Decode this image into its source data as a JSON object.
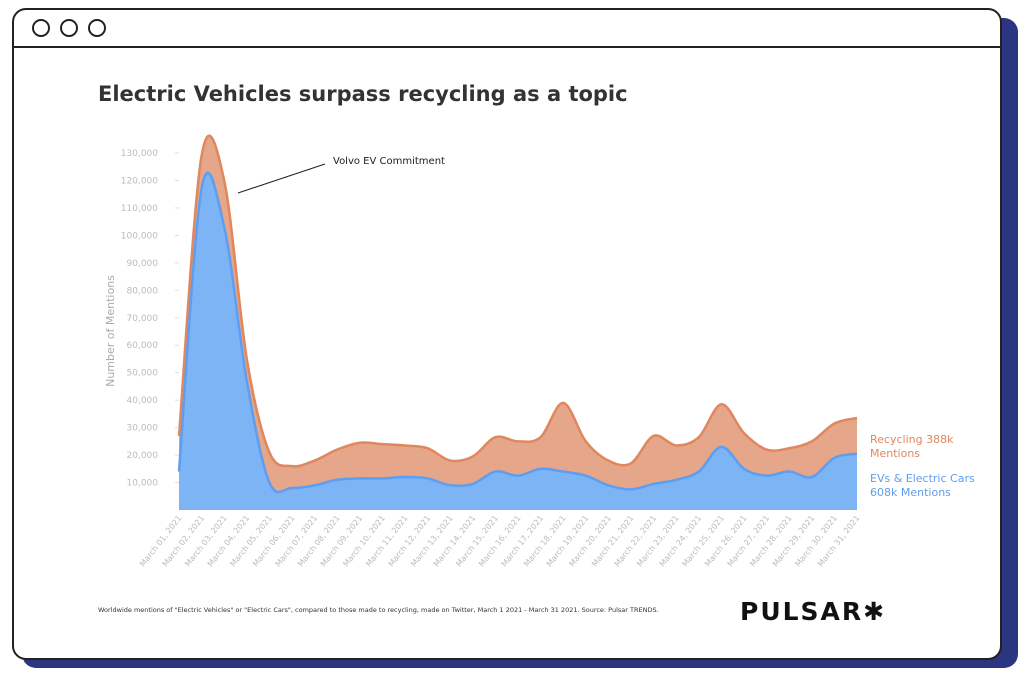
{
  "chart_data": {
    "type": "stacked-area",
    "title": "Electric Vehicles surpass recycling as a topic",
    "y_label": "Number of Mentions",
    "annotation": "Volvo EV Commitment",
    "footnote": "Worldwide mentions of \"Electric Vehicles\" or \"Electric Cars\", compared to those made to recycling, made on Twitter, March 1 2021 - March 31 2021. Source: Pulsar TRENDS.",
    "logo": "PULSAR✱",
    "categories": [
      "March 01, 2021",
      "March 02, 2021",
      "March 03, 2021",
      "March 04, 2021",
      "March 05, 2021",
      "March 06, 2021",
      "March 07, 2021",
      "March 08, 2021",
      "March 09, 2021",
      "March 10, 2021",
      "March 11, 2021",
      "March 12, 2021",
      "March 13, 2021",
      "March 14, 2021",
      "March 15, 2021",
      "March 16, 2021",
      "March 17, 2021",
      "March 18, 2021",
      "March 19, 2021",
      "March 20, 2021",
      "March 21, 2021",
      "March 22, 2021",
      "March 23, 2021",
      "March 24, 2021",
      "March 25, 2021",
      "March 26, 2021",
      "March 27, 2021",
      "March 28, 2021",
      "March 29, 2021",
      "March 30, 2021",
      "March 31, 2021"
    ],
    "series": [
      {
        "name": "EVs & Electric Cars 608k Mentions",
        "color": "#7cb4f6",
        "values": [
          14000,
          117000,
          103000,
          47000,
          10000,
          8000,
          9000,
          11000,
          11500,
          11500,
          12000,
          11500,
          9000,
          9500,
          14000,
          12500,
          15000,
          14000,
          12500,
          9000,
          7500,
          9500,
          11000,
          14000,
          23000,
          15000,
          12500,
          14000,
          12000,
          19000,
          20500
        ]
      },
      {
        "name": "Recycling 388k Mentions",
        "color": "#e5a689",
        "values": [
          13000,
          12000,
          17000,
          8000,
          11000,
          8000,
          9000,
          11000,
          13000,
          12500,
          11500,
          11000,
          9000,
          10000,
          12500,
          12500,
          11500,
          25000,
          12500,
          9000,
          9500,
          17500,
          12500,
          12500,
          15500,
          13000,
          9500,
          8500,
          13000,
          12500,
          13000
        ]
      }
    ],
    "ylim": [
      0,
      130000
    ],
    "yticks": [
      {
        "value": 10000,
        "label": "10,000"
      },
      {
        "value": 20000,
        "label": "20,000"
      },
      {
        "value": 30000,
        "label": "30,000"
      },
      {
        "value": 40000,
        "label": "40,000"
      },
      {
        "value": 50000,
        "label": "50,000"
      },
      {
        "value": 60000,
        "label": "60,000"
      },
      {
        "value": 70000,
        "label": "70,000"
      },
      {
        "value": 80000,
        "label": "80,000"
      },
      {
        "value": 90000,
        "label": "90,000"
      },
      {
        "value": 100000,
        "label": "100,000"
      },
      {
        "value": 110000,
        "label": "110,000"
      },
      {
        "value": 120000,
        "label": "120,000"
      },
      {
        "value": 130000,
        "label": "130,000"
      }
    ]
  }
}
